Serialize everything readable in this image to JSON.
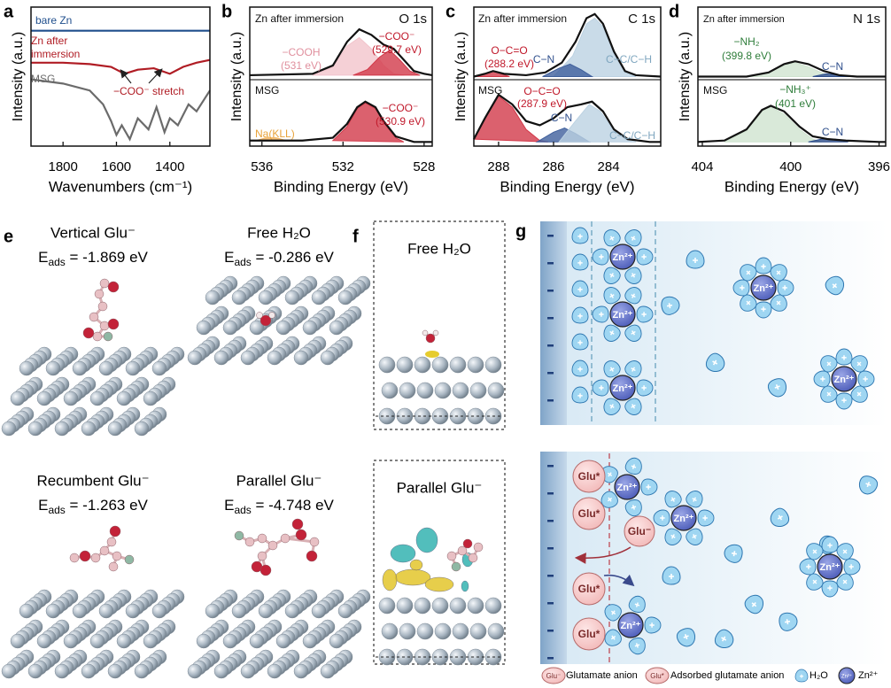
{
  "chart_data": [
    {
      "type": "line",
      "letter": "a",
      "xlabel": "Wavenumbers (cm⁻¹)",
      "ylabel": "Intensity (a.u.)",
      "xlim": [
        1920,
        1250
      ],
      "xticks": [
        1800,
        1600,
        1400
      ],
      "ylim": [
        0,
        1
      ],
      "series": [
        {
          "color": "#1f4e8c",
          "x": [
            1920,
            1250
          ],
          "values": [
            0.83,
            0.83
          ]
        },
        {
          "color": "#b01c24",
          "x": [
            1920,
            1800,
            1700,
            1620,
            1570,
            1520,
            1460,
            1400,
            1350,
            1300,
            1250
          ],
          "values": [
            0.6,
            0.6,
            0.59,
            0.57,
            0.52,
            0.55,
            0.56,
            0.52,
            0.57,
            0.6,
            0.62
          ]
        },
        {
          "color": "#6b6b6b",
          "x": [
            1920,
            1800,
            1700,
            1650,
            1620,
            1600,
            1580,
            1550,
            1520,
            1480,
            1450,
            1420,
            1400,
            1370,
            1330,
            1300,
            1250
          ],
          "values": [
            0.48,
            0.45,
            0.4,
            0.3,
            0.18,
            0.08,
            0.15,
            0.05,
            0.2,
            0.12,
            0.28,
            0.1,
            0.2,
            0.15,
            0.3,
            0.25,
            0.4
          ]
        }
      ],
      "annotations": [
        {
          "text": "bare Zn",
          "color": "#1f4e8c"
        },
        {
          "text": "Zn after",
          "color": "#b01c24"
        },
        {
          "text": "immersion",
          "color": "#b01c24"
        },
        {
          "text": "MSG",
          "color": "#6b6b6b"
        },
        {
          "text": "−COO⁻ stretch",
          "color": "#b01c24"
        }
      ]
    },
    {
      "type": "line",
      "letter": "b",
      "xlabel": "Binding Energy (eV)",
      "ylabel": "Intensity (a.u.)",
      "xlim": [
        536.6,
        527.6
      ],
      "xticks": [
        536,
        532,
        528
      ],
      "ylim": [
        0,
        1
      ],
      "series": [
        {
          "color": "#f2c4cc",
          "area": true,
          "x": [
            533.5,
            532.5,
            531.8,
            531.2,
            530.6,
            530,
            529.5,
            529
          ],
          "values": [
            0.51,
            0.57,
            0.72,
            0.78,
            0.7,
            0.58,
            0.52,
            0.51
          ]
        },
        {
          "color": "#d23a4a",
          "area": true,
          "x": [
            531.5,
            530.8,
            530.2,
            529.7,
            529.2,
            528.7,
            528.2
          ],
          "values": [
            0.51,
            0.55,
            0.64,
            0.69,
            0.62,
            0.54,
            0.51
          ]
        },
        {
          "color": "#111111",
          "x": [
            536.6,
            533.5,
            532.5,
            531.8,
            531.2,
            530.6,
            530,
            529.5,
            529,
            528.5,
            528,
            527.6
          ],
          "values": [
            0.51,
            0.52,
            0.58,
            0.75,
            0.84,
            0.8,
            0.73,
            0.7,
            0.62,
            0.54,
            0.52,
            0.51
          ]
        },
        {
          "color": "#f2b25c",
          "area": true,
          "x": [
            536.3,
            535.8,
            535.3,
            534.8
          ],
          "values": [
            0.04,
            0.06,
            0.06,
            0.04
          ]
        },
        {
          "color": "#d23a4a",
          "area": true,
          "x": [
            532.5,
            531.8,
            531.3,
            530.9,
            530.4,
            530,
            529.4,
            529
          ],
          "values": [
            0.04,
            0.14,
            0.27,
            0.31,
            0.27,
            0.17,
            0.06,
            0.03
          ]
        },
        {
          "color": "#111111",
          "x": [
            536.6,
            534,
            532.5,
            531.8,
            531.3,
            530.9,
            530.4,
            530,
            529.4,
            528.5,
            527.6
          ],
          "values": [
            0.04,
            0.04,
            0.06,
            0.16,
            0.28,
            0.32,
            0.28,
            0.18,
            0.07,
            0.03,
            0.03
          ]
        }
      ],
      "annotations": [
        {
          "text": "Zn after immersion",
          "color": "#111111"
        },
        {
          "text": "O 1s",
          "color": "#111111"
        },
        {
          "text": "−COOH",
          "color": "#e0909e"
        },
        {
          "text": "(531 eV)",
          "color": "#e0909e"
        },
        {
          "text": "−COO⁻",
          "color": "#c0182a"
        },
        {
          "text": "(529.7 eV)",
          "color": "#c0182a"
        },
        {
          "text": "MSG",
          "color": "#111111"
        },
        {
          "text": "−COO⁻",
          "color": "#c0182a"
        },
        {
          "text": "(530.9 eV)",
          "color": "#c0182a"
        },
        {
          "text": "Na(KLL)",
          "color": "#e8a33a"
        }
      ]
    },
    {
      "type": "line",
      "letter": "c",
      "xlabel": "Binding Energy (eV)",
      "ylabel": "Intensity (a.u.)",
      "xlim": [
        288.9,
        282.1
      ],
      "xticks": [
        288,
        286,
        284
      ],
      "ylim": [
        0,
        1
      ],
      "series": [
        {
          "color": "#bcd2e2",
          "area": true,
          "x": [
            286,
            285.3,
            284.8,
            284.5,
            284.2,
            283.8,
            283.4,
            283
          ],
          "values": [
            0.5,
            0.65,
            0.88,
            0.92,
            0.86,
            0.66,
            0.53,
            0.5
          ]
        },
        {
          "color": "#3f5f9c",
          "area": true,
          "x": [
            286.4,
            285.8,
            285.4,
            285,
            284.6
          ],
          "values": [
            0.5,
            0.56,
            0.59,
            0.55,
            0.5
          ]
        },
        {
          "color": "#d23a4a",
          "area": true,
          "x": [
            288.8,
            288.2,
            287.6
          ],
          "values": [
            0.5,
            0.54,
            0.5
          ]
        },
        {
          "color": "#111111",
          "x": [
            288.9,
            288.5,
            288.2,
            287.8,
            287,
            286.3,
            285.7,
            285.2,
            284.8,
            284.5,
            284.2,
            283.8,
            283.4,
            283,
            282.1
          ],
          "values": [
            0.5,
            0.52,
            0.54,
            0.52,
            0.51,
            0.53,
            0.6,
            0.75,
            0.92,
            0.95,
            0.88,
            0.68,
            0.54,
            0.51,
            0.5
          ]
        },
        {
          "color": "#d23a4a",
          "area": true,
          "x": [
            288.9,
            288.5,
            288,
            287.5,
            287,
            286.5,
            286.2
          ],
          "values": [
            0.05,
            0.2,
            0.36,
            0.28,
            0.12,
            0.04,
            0.03
          ]
        },
        {
          "color": "#3f5f9c",
          "area": true,
          "x": [
            286.6,
            286,
            285.6,
            285.2,
            284.7
          ],
          "values": [
            0.03,
            0.1,
            0.13,
            0.09,
            0.03
          ]
        },
        {
          "color": "#bcd2e2",
          "area": true,
          "x": [
            285.8,
            285.2,
            284.7,
            284.3,
            283.8,
            283.3,
            283
          ],
          "values": [
            0.03,
            0.18,
            0.3,
            0.25,
            0.11,
            0.04,
            0.03
          ]
        },
        {
          "color": "#111111",
          "x": [
            288.9,
            288.5,
            288,
            287.5,
            287,
            286.5,
            286,
            285.5,
            285,
            284.6,
            284.2,
            283.8,
            283.3,
            282.5,
            282.1
          ],
          "values": [
            0.05,
            0.2,
            0.37,
            0.3,
            0.18,
            0.15,
            0.2,
            0.28,
            0.3,
            0.32,
            0.25,
            0.12,
            0.05,
            0.03,
            0.03
          ]
        }
      ],
      "annotations": [
        {
          "text": "Zn after immersion",
          "color": "#111111"
        },
        {
          "text": "C 1s",
          "color": "#111111"
        },
        {
          "text": "O−C=O",
          "color": "#c0182a"
        },
        {
          "text": "(288.2 eV)",
          "color": "#c0182a"
        },
        {
          "text": "C−N",
          "color": "#2f4f8c"
        },
        {
          "text": "C−C/C−H",
          "color": "#7fa6bf"
        },
        {
          "text": "MSG",
          "color": "#111111"
        },
        {
          "text": "O−C=O",
          "color": "#c0182a"
        },
        {
          "text": "(287.9 eV)",
          "color": "#c0182a"
        },
        {
          "text": "C−N",
          "color": "#2f4f8c"
        },
        {
          "text": "C−C/C−H",
          "color": "#7fa6bf"
        }
      ]
    },
    {
      "type": "line",
      "letter": "d",
      "xlabel": "Binding Energy (eV)",
      "ylabel": "Intensity (a.u.)",
      "xlim": [
        404.2,
        395.7
      ],
      "xticks": [
        404,
        400,
        396
      ],
      "ylim": [
        0,
        1
      ],
      "series": [
        {
          "color": "#cfe3cf",
          "area": true,
          "x": [
            402,
            401,
            400.3,
            399.8,
            399.2,
            398.5,
            398
          ],
          "values": [
            0.5,
            0.53,
            0.58,
            0.6,
            0.57,
            0.52,
            0.5
          ]
        },
        {
          "color": "#2f4f8c",
          "area": true,
          "x": [
            399,
            398.4,
            397.8,
            397.3
          ],
          "values": [
            0.5,
            0.52,
            0.51,
            0.5
          ]
        },
        {
          "color": "#111111",
          "x": [
            404.2,
            402,
            401,
            400.3,
            399.8,
            399.2,
            398.5,
            397.8,
            397,
            395.7
          ],
          "values": [
            0.5,
            0.5,
            0.53,
            0.59,
            0.61,
            0.59,
            0.54,
            0.51,
            0.5,
            0.5
          ]
        },
        {
          "color": "#cfe3cf",
          "area": true,
          "x": [
            403,
            402,
            401.3,
            400.9,
            400.3,
            399.6,
            399,
            398.6
          ],
          "values": [
            0.03,
            0.11,
            0.25,
            0.28,
            0.23,
            0.12,
            0.05,
            0.03
          ]
        },
        {
          "color": "#2f4f8c",
          "area": true,
          "x": [
            399.2,
            398.6,
            398,
            397.4
          ],
          "values": [
            0.03,
            0.05,
            0.05,
            0.03
          ]
        },
        {
          "color": "#111111",
          "x": [
            404.2,
            403,
            402,
            401.3,
            400.9,
            400.3,
            399.6,
            399,
            398.3,
            397.5,
            396,
            395.7
          ],
          "values": [
            0.03,
            0.04,
            0.12,
            0.26,
            0.29,
            0.25,
            0.14,
            0.07,
            0.05,
            0.04,
            0.03,
            0.03
          ]
        }
      ],
      "annotations": [
        {
          "text": "Zn after immersion",
          "color": "#111111"
        },
        {
          "text": "N 1s",
          "color": "#111111"
        },
        {
          "text": "−NH₂",
          "color": "#2e7d3a"
        },
        {
          "text": "(399.8 eV)",
          "color": "#2e7d3a"
        },
        {
          "text": "C−N",
          "color": "#2f4f8c"
        },
        {
          "text": "MSG",
          "color": "#111111"
        },
        {
          "text": "−NH₃⁺",
          "color": "#2e7d3a"
        },
        {
          "text": "(401 eV)",
          "color": "#2e7d3a"
        },
        {
          "text": "C−N",
          "color": "#2f4f8c"
        }
      ]
    }
  ],
  "panel_e": {
    "letter": "e",
    "items": [
      {
        "title": "Vertical Glu⁻",
        "energy": {
          "symbol": "E",
          "subscript": "ads",
          "text": " = -1.869 eV"
        }
      },
      {
        "title": "Free H₂O",
        "energy": {
          "symbol": "E",
          "subscript": "ads",
          "text": " = -0.286 eV"
        }
      },
      {
        "title": "Recumbent Glu⁻",
        "energy": {
          "symbol": "E",
          "subscript": "ads",
          "text": " = -1.263 eV"
        }
      },
      {
        "title": "Parallel Glu⁻",
        "energy": {
          "symbol": "E",
          "subscript": "ads",
          "text": " = -4.748 eV"
        }
      }
    ]
  },
  "panel_f": {
    "letter": "f",
    "items": [
      "Free H₂O",
      "Parallel Glu⁻"
    ]
  },
  "panel_g": {
    "letter": "g",
    "zn_label": "Zn²⁺",
    "glu_adsorbed": "Glu*",
    "glu_free": "Glu⁻",
    "legend": [
      {
        "symbol": "Glu⁻",
        "text": "Glutamate anion"
      },
      {
        "symbol": "Glu*",
        "text": "Adsorbed glutamate anion"
      },
      {
        "text": "H₂O"
      },
      {
        "symbol": "Zn²⁺",
        "text": "Zn²⁺"
      }
    ]
  }
}
